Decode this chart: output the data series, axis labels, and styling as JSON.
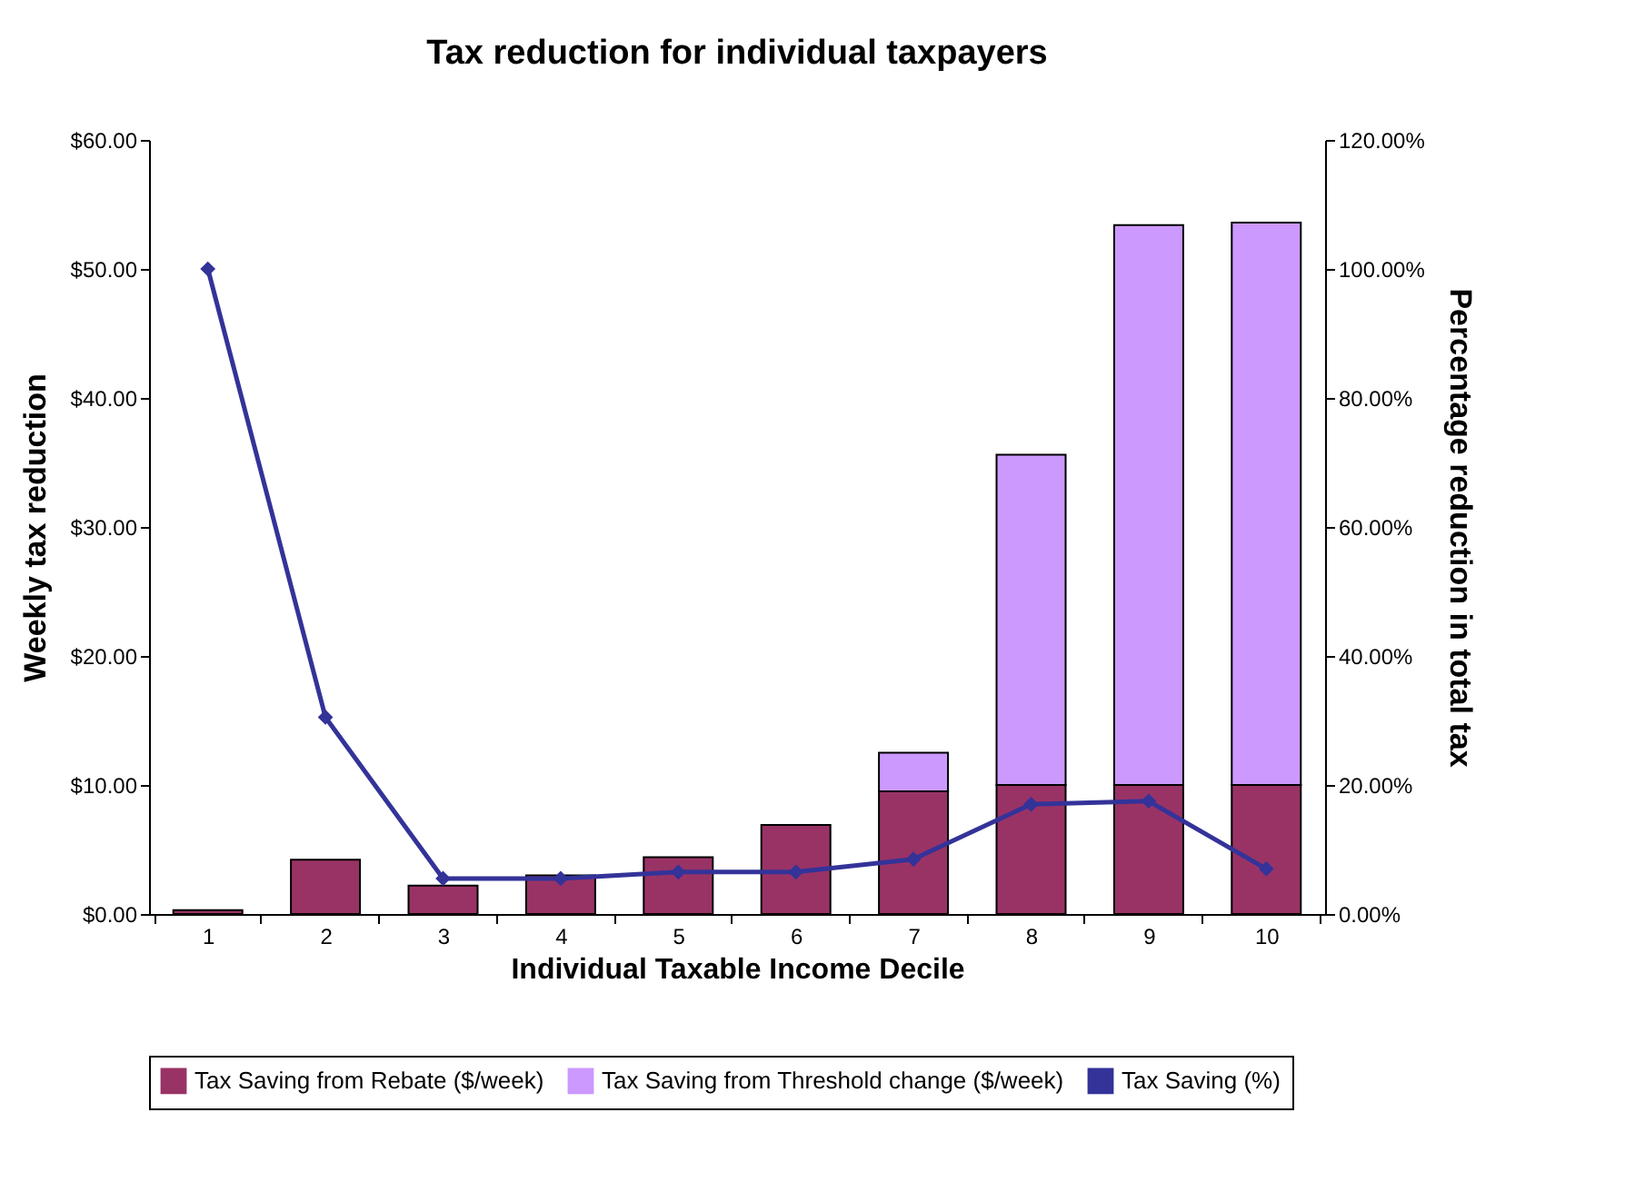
{
  "chart_data": {
    "type": "bar",
    "title": "Tax reduction for individual taxpayers",
    "xlabel": "Individual Taxable Income Decile",
    "ylabel": "Weekly tax reduction",
    "y2label": "Percentage reduction in total tax",
    "categories": [
      "1",
      "2",
      "3",
      "4",
      "5",
      "6",
      "7",
      "8",
      "9",
      "10"
    ],
    "stacked": true,
    "legend": "bottom",
    "series": [
      {
        "name": "Tax Saving from Rebate ($/week)",
        "color": "#993366",
        "values": [
          0.3,
          4.2,
          2.2,
          3.0,
          4.4,
          6.9,
          9.5,
          10,
          10,
          10
        ]
      },
      {
        "name": "Tax Saving from Threshold change ($/week)",
        "color": "#cc99ff",
        "values": [
          null,
          null,
          null,
          null,
          null,
          null,
          3.0,
          25.6,
          43.4,
          43.6
        ]
      },
      {
        "name": "Tax Saving (%)",
        "type": "line",
        "axis": "y2",
        "color": "#333399",
        "marker": "diamond",
        "values": [
          100,
          30.5,
          5.5,
          5.5,
          6.5,
          6.5,
          8.5,
          17,
          17.5,
          7
        ]
      }
    ],
    "ylim": [
      0,
      60
    ],
    "yticks": [
      {
        "value": 0,
        "label": "$0.00"
      },
      {
        "value": 10,
        "label": "$10.00"
      },
      {
        "value": 20,
        "label": "$20.00"
      },
      {
        "value": 30,
        "label": "$30.00"
      },
      {
        "value": 40,
        "label": "$40.00"
      },
      {
        "value": 50,
        "label": "$50.00"
      },
      {
        "value": 60,
        "label": "$60.00"
      }
    ],
    "y2lim": [
      0,
      120
    ],
    "y2ticks": [
      {
        "value": 0,
        "label": "0.00%"
      },
      {
        "value": 20,
        "label": "20.00%"
      },
      {
        "value": 40,
        "label": "40.00%"
      },
      {
        "value": 60,
        "label": "60.00%"
      },
      {
        "value": 80,
        "label": "80.00%"
      },
      {
        "value": 100,
        "label": "100.00%"
      },
      {
        "value": 120,
        "label": "120.00%"
      }
    ],
    "grid": false
  }
}
